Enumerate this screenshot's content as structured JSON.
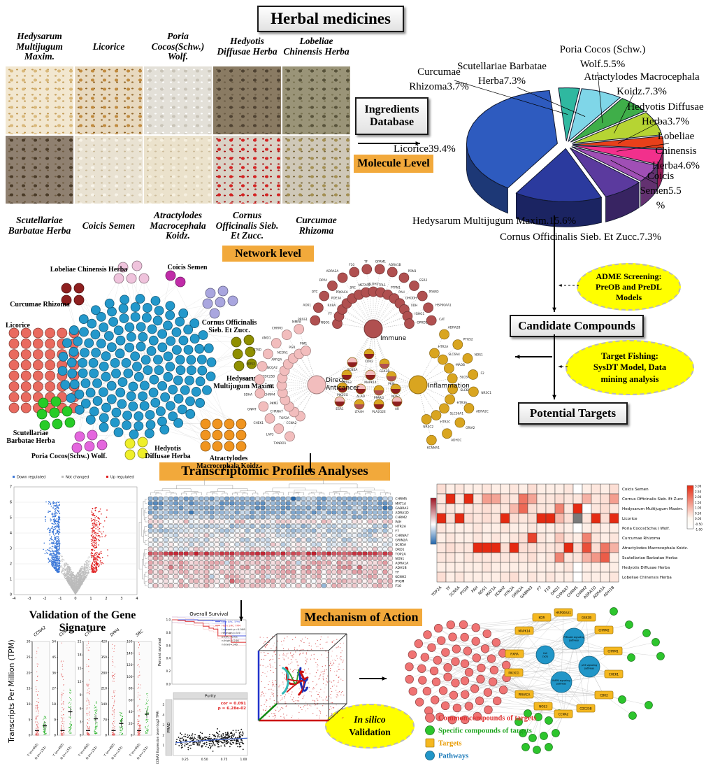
{
  "header": {
    "title": "Herbal medicines"
  },
  "herbs": {
    "row1": [
      {
        "name": "Hedysarum Multijugum Maxim.",
        "base": "#F2E7D0",
        "d1": "#D9B87A",
        "d2": "#C19A55"
      },
      {
        "name": "Licorice",
        "base": "#E8D9BF",
        "d1": "#C08A3E",
        "d2": "#8F6426"
      },
      {
        "name": "Poria Cocos(Schw.) Wolf.",
        "base": "#E3E0D8",
        "d1": "#C9C4B8",
        "d2": "#FFFFFF"
      },
      {
        "name": "Hedyotis Diffusae Herba",
        "base": "#8A7B63",
        "d1": "#4E4232",
        "d2": "#6B5C45"
      },
      {
        "name": "Lobeliae Chinensis Herba",
        "base": "#9A9478",
        "d1": "#57523A",
        "d2": "#76704F"
      }
    ],
    "row2": [
      {
        "name": "Scutellariae Barbatae Herba",
        "base": "#8F8070",
        "d1": "#4A3B28",
        "d2": "#6E5B42"
      },
      {
        "name": "Coicis Semen",
        "base": "#E9E2D2",
        "d1": "#F7F3E8",
        "d2": "#CBBC9C"
      },
      {
        "name": "Atractylodes Macrocephala Koidz.",
        "base": "#EBE2CC",
        "d1": "#F6F0E0",
        "d2": "#CDBD9C"
      },
      {
        "name": "Cornus Officinalis Sieb. Et Zucc.",
        "base": "#D9D2C6",
        "d1": "#D42222",
        "d2": "#A81818"
      },
      {
        "name": "Curcumae Rhizoma",
        "base": "#CFC8B8",
        "d1": "#A38F52",
        "d2": "#7C6B3E"
      }
    ]
  },
  "flow": {
    "ingredients_database": "Ingredients Database",
    "molecule_level": "Molecule Level",
    "network_level": "Network level",
    "transcriptomic_heading": "Transcriptomic Profiles Analyses",
    "validation_heading": "Validation of the Gene Signature",
    "mechanism_heading": "Mechanism of Action",
    "adme_lines": [
      "ADME Screening:",
      "PreOB and PreDL",
      "Models"
    ],
    "candidate_compounds": "Candidate Compounds",
    "target_fishing_lines": [
      "Target Fishing:",
      "SysDT Model, Data",
      "mining analysis"
    ],
    "potential_targets": "Potential Targets",
    "in_silico_lines": [
      "In silico",
      "Validation"
    ]
  },
  "chart_data": [
    {
      "id": "ingredient-pie",
      "type": "pie",
      "slices": [
        {
          "label": "Curcumae Rhizoma",
          "pct": 3.7,
          "color": "#2FB8A0",
          "lines": [
            "Curcumae",
            "Rhizoma3.7%"
          ]
        },
        {
          "label": "Scutellariae Barbatae Herba",
          "pct": 7.3,
          "color": "#7FD6E8",
          "lines": [
            "Scutellariae Barbatae",
            "Herba7.3%"
          ]
        },
        {
          "label": "Poria Cocos (Schw.) Wolf.",
          "pct": 5.5,
          "color": "#3FAE49",
          "lines": [
            "Poria Cocos (Schw.)",
            "Wolf.5.5%"
          ]
        },
        {
          "label": "Atractylodes Macrocephala Koidz.",
          "pct": 7.3,
          "color": "#B6D433",
          "lines": [
            "Atractylodes Macrocephala",
            "Koidz.7.3%"
          ]
        },
        {
          "label": "Hedyotis Diffusae Herba",
          "pct": 3.7,
          "color": "#E8401A",
          "lines": [
            "Hedyotis Diffusae",
            "Herba3.7%"
          ]
        },
        {
          "label": "Lobeliae Chinensis Herba",
          "pct": 4.6,
          "color": "#F2308C",
          "lines": [
            "Lobeliae",
            "Chinensis",
            "Herba4.6%"
          ]
        },
        {
          "label": "Coicis Semen",
          "pct": 5.5,
          "color": "#A04FB5",
          "lines": [
            "Coicis",
            "Semen5.5",
            "%"
          ]
        },
        {
          "label": "Cornus Officinalis Sieb. Et Zucc.",
          "pct": 7.3,
          "color": "#5B3A9E",
          "lines": [
            "Cornus Officinalis Sieb. Et Zucc.7.3%"
          ]
        },
        {
          "label": "Hedysarum Multijugum Maxim.",
          "pct": 15.6,
          "color": "#2B3A9E",
          "lines": [
            "Hedysarum Multijugum Maxim.15.6%"
          ]
        },
        {
          "label": "Licorice",
          "pct": 39.4,
          "color": "#2E5BBF",
          "lines": [
            "Licorice39.4%"
          ]
        }
      ]
    },
    {
      "id": "volcano",
      "type": "scatter",
      "legend": [
        "Down regulated",
        "Not changed",
        "Up regulated"
      ],
      "colors": {
        "down": "#3C78D8",
        "not": "#BBBBBB",
        "up": "#E02020"
      },
      "xlim": [
        -4,
        4
      ],
      "ylim": [
        0,
        7
      ],
      "xticks": [
        -4,
        -3,
        -2,
        -1,
        0,
        1,
        2,
        3,
        4
      ],
      "yticks": [
        0,
        1,
        2,
        3,
        4,
        5,
        6,
        7
      ],
      "counts": {
        "down": 560,
        "not": 2000,
        "up": 300
      }
    },
    {
      "id": "expression-heatmap",
      "type": "heatmap",
      "genes": [
        "CHRM5",
        "MAT1A",
        "GABRA3",
        "ADRA1D",
        "CHRM2",
        "PAH",
        "HTR2A",
        "F7",
        "CHRNA7",
        "GRIN2A",
        "SCN5A",
        "DRD1",
        "TOP2A",
        "NOS1",
        "ADRA1A",
        "ADH1B",
        "TF",
        "KCNH2",
        "PYGM",
        "F10"
      ],
      "row_means": [
        -1.6,
        -1.8,
        -1.7,
        -1.5,
        -1.2,
        0.4,
        -0.9,
        -0.8,
        -0.3,
        -0.5,
        -0.3,
        0.2,
        3.2,
        0.9,
        1.0,
        1.1,
        0.9,
        0.8,
        0.7,
        0.6
      ],
      "n_samples": 48,
      "colorbar_ticks": [
        "4.00",
        "3.00",
        "2.00",
        "1.00",
        "0.00",
        "-1.00",
        "-2.00",
        "-3.00"
      ]
    },
    {
      "id": "herb-gene-heatmap",
      "type": "heatmap",
      "rows": [
        "Coicis Semen",
        "Cornus Officinalis Sieb. Et Zucc",
        "Hedysarum Multijugum Maxim.",
        "Licorice",
        "Poria Cocos(Schw.) Wolf.",
        "Curcumae Rhizoma",
        "Atractylodes Macrocephala Koidz.",
        "Scutellariae Barbatae Herba",
        "Hedyotis Diffusae Herba",
        "Lobeliae Chinensis Herba"
      ],
      "cols": [
        "TOP2A",
        "TF",
        "SCN5A",
        "PYGM",
        "PAH",
        "NOS1",
        "MAT1A",
        "KCNH2",
        "HTR2A",
        "GRIN2A",
        "GABRA3",
        "F7",
        "F10",
        "DRD1",
        "CHRNA7",
        "CHRM5",
        "CHRM2",
        "ADRA1D",
        "ADRA1A",
        "ADH1B"
      ],
      "values": [
        [
          0.3,
          0.1,
          0.2,
          0.1,
          0.1,
          0.2,
          0.1,
          0.1,
          0.2,
          0.1,
          0.3,
          0.1,
          0.1,
          0.1,
          0.2,
          0,
          0.1,
          0.2,
          0.1,
          0.3
        ],
        [
          0.2,
          3,
          0.2,
          3,
          0.2,
          1.2,
          1.1,
          0.3,
          0.2,
          1.8,
          1.1,
          0.2,
          0.2,
          0.3,
          0.2,
          0.2,
          0.9,
          0.2,
          0.3,
          1.2
        ],
        [
          0.2,
          0.2,
          0.1,
          0.2,
          0.2,
          0.3,
          0.2,
          0.2,
          0.8,
          2.0,
          0.3,
          0.2,
          0.2,
          1.6,
          0.2,
          3,
          0,
          0.2,
          0.3,
          0.2
        ],
        [
          3,
          0.3,
          3,
          0.3,
          0.2,
          0.3,
          0.2,
          3,
          0.3,
          0.2,
          0.3,
          3,
          3,
          0.8,
          0.3,
          null,
          0.2,
          3,
          0.3,
          3
        ],
        [
          0.2,
          0.1,
          0.1,
          0.1,
          0.2,
          0.1,
          0.1,
          0.2,
          0.1,
          0.1,
          0.2,
          0.1,
          0.1,
          0.2,
          0.1,
          0,
          0.1,
          0.2,
          0.1,
          0.1
        ],
        [
          0.1,
          0.2,
          0.1,
          0.1,
          0.2,
          0.1,
          0.2,
          0.1,
          0.2,
          0.3,
          2.6,
          0.2,
          0.1,
          0.6,
          0.2,
          0.1,
          1.6,
          0.2,
          0.1,
          0.2
        ],
        [
          0.2,
          0.3,
          0.2,
          0.2,
          3,
          3,
          3,
          0.3,
          3,
          0.3,
          0.3,
          0.2,
          0.2,
          0.3,
          3,
          0.3,
          2.4,
          0.3,
          1.8,
          0.9
        ],
        [
          0.2,
          0.2,
          0.1,
          0.2,
          0.2,
          0.2,
          0.2,
          0.2,
          0.2,
          0.2,
          0.3,
          0.1,
          0.2,
          1.6,
          0.2,
          0.2,
          0.9,
          1.3,
          2.2,
          0.1
        ],
        [
          0.1,
          0.1,
          0.1,
          0.1,
          0.1,
          0.2,
          0.1,
          0.1,
          0.1,
          0.1,
          0.1,
          0.1,
          0.1,
          0.1,
          0.2,
          0,
          0.1,
          0.1,
          0.1,
          0.1
        ],
        [
          0.3,
          0.1,
          0.2,
          0.1,
          0.1,
          0.1,
          0.1,
          0.2,
          0.3,
          0.1,
          0.2,
          0.1,
          0.2,
          0.1,
          0.1,
          0,
          0.1,
          0.1,
          0.1,
          0.2
        ]
      ],
      "na_color": "#7A7A7A",
      "colorbar_ticks": [
        "3.00",
        "2.50",
        "2.00",
        "1.50",
        "1.00",
        "0.50",
        "0.00",
        "-0.50",
        "-1.00"
      ]
    },
    {
      "id": "tpm-strips",
      "type": "strip",
      "ylabel": "Transcripts Per Million (TPM)",
      "groups": [
        "T (n=492)",
        "N (n=152)"
      ],
      "panels": [
        {
          "gene": "CCNA2",
          "ymax": 30,
          "step": 5,
          "green": 0.2
        },
        {
          "gene": "CDK2",
          "ymax": 54,
          "step": 9,
          "green": 0.5
        },
        {
          "gene": "CTH",
          "ymax": 21,
          "step": 3,
          "green": 0.35
        },
        {
          "gene": "DPP4",
          "ymax": 420,
          "step": 70,
          "green": 0.25
        },
        {
          "gene": "SRC",
          "ymax": 160,
          "step": 20,
          "green": 0.45
        }
      ]
    },
    {
      "id": "overall-survival",
      "type": "line",
      "title": "Overall Survival",
      "ylabel": "Percent survival",
      "yticks": [
        "0.0",
        "0.2",
        "0.4",
        "0.6",
        "0.8",
        "1.0"
      ],
      "legend": [
        "Low SRC TPM",
        "High SRC TPM",
        "Logrank p=0.008",
        "HR(high)=3.9",
        "p(HR)=0.01",
        "n(high)=246",
        "n(low)=246"
      ],
      "series": [
        {
          "name": "Low SRC TPM",
          "color": "#4455E0",
          "steps": [
            [
              0,
              1
            ],
            [
              0.35,
              0.99
            ],
            [
              0.55,
              0.985
            ],
            [
              0.66,
              0.98
            ],
            [
              0.72,
              0.75
            ],
            [
              1,
              0.75
            ]
          ]
        },
        {
          "name": "High SRC TPM",
          "color": "#E04444",
          "steps": [
            [
              0,
              1
            ],
            [
              0.08,
              0.99
            ],
            [
              0.18,
              0.975
            ],
            [
              0.3,
              0.95
            ],
            [
              0.42,
              0.9
            ],
            [
              0.5,
              0.87
            ],
            [
              0.56,
              0.855
            ],
            [
              0.62,
              0.75
            ],
            [
              0.8,
              0.65
            ],
            [
              1,
              0.65
            ]
          ]
        }
      ]
    },
    {
      "id": "purity-scatter",
      "type": "scatter",
      "strip_label": "Purity",
      "row_label": "PRAD",
      "cor_text": "cor = 0.091",
      "p_text": "p = 6.28e-02",
      "ylabel": "CCNA2 Expression Level (log2 TPM)",
      "xticks": [
        "0.25",
        "0.50",
        "0.75",
        "1.00"
      ],
      "yticks": [
        1,
        2,
        3,
        4,
        5
      ],
      "n_points": 330,
      "trend_color": "#4466CC"
    }
  ],
  "left_network": {
    "hub_color": "#2398CB",
    "clusters": [
      {
        "name": "Lobeliae Chinensis Herba",
        "color": "#EFC3DC",
        "count": 5
      },
      {
        "name": "Coicis Semen",
        "color": "#C02BA8",
        "count": 2
      },
      {
        "name": "Curcumae Rhizoma",
        "color": "#8E1F1F",
        "count": 4
      },
      {
        "name": "Cornus Officinalis Sieb. Et Zucc.",
        "color": "#A9A6DF",
        "count": 6
      },
      {
        "name": "Licorice",
        "color": "#E96A5F",
        "count": 48
      },
      {
        "name": "Hedysarum Multijugum Maxim.",
        "color": "#8F8F00",
        "count": 6
      },
      {
        "name": "Scutellariae Barbatae Herba",
        "color": "#27CC27",
        "count": 8
      },
      {
        "name": "Poria Cocos(Schw.) Wolf.",
        "color": "#E466DE",
        "count": 5
      },
      {
        "name": "Hedyotis Diffusae Herba",
        "color": "#EFEF2A",
        "count": 4
      },
      {
        "name": "Atractylodes Macrocephala Koidz.",
        "color": "#F0941F",
        "count": 12
      }
    ]
  },
  "hub_network": {
    "hubs": [
      {
        "name": "Immune",
        "color": "#B05050",
        "members": [
          "NQO1",
          "F7",
          "RXRA",
          "PDE3A",
          "PRKACA",
          "SRC",
          "METAP2",
          "ALDH2",
          "TPL1",
          "PTPN1",
          "PAH",
          "DHODH",
          "XDH",
          "IGHG1",
          "OPRD1",
          "PRSS1",
          "AOX1",
          "OTC",
          "DPP4",
          "ADRA2A",
          "F10",
          "TF",
          "OPRM1",
          "ADRA1B",
          "PON1",
          "ESR2",
          "PPARD",
          "HSP90AA1",
          "CAT"
        ]
      },
      {
        "name": "Direct Anticancer",
        "color": "#F2BDBD",
        "members": [
          "CCNA2",
          "TOP2A",
          "CHRNA7",
          "PKM2",
          "CHRM4",
          "KDR",
          "CDC25B",
          "NCOA2",
          "AMY2A",
          "NCOA1",
          "PGR",
          "PIM1",
          "TXNRD1",
          "LAP3",
          "CHEK1",
          "GNMT",
          "SDHA",
          "AKR1B1",
          "NOS3",
          "CTSD",
          "AMD1",
          "CHRM3",
          "MMP8"
        ]
      },
      {
        "name": "Inflammation",
        "color": "#D9A520",
        "members": [
          "HTR2A",
          "SLC6A4",
          "MAOB",
          "SLC6A2",
          "SLC6A3",
          "HTR3A",
          "SLC36A1",
          "HTR2C",
          "NR3C2",
          "ADRA2B",
          "PTGS2",
          "NOS1",
          "F2",
          "NR3C1",
          "ADRA2C",
          "GRIA2",
          "ADH1C",
          "KCNMA1"
        ]
      }
    ],
    "shared": [
      "CDK2",
      "SCN5A",
      "GSK3B",
      "PRSS3",
      "MAPK14",
      "PKIA",
      "PIK3CG",
      "ALAD",
      "PPARG",
      "NOS2",
      "ESR1",
      "LTA4H",
      "PLA2G2E",
      "AR"
    ]
  },
  "bottom_network": {
    "targets": [
      "KDR",
      "HSP90AA1",
      "GSK3B",
      "MAPK14",
      "CHRM2",
      "RXRA",
      "CHRM1",
      "PIK3CG",
      "CHEK1",
      "PRKACA",
      "CDK2",
      "NOS3",
      "CCNA2",
      "CDC25B"
    ],
    "pathways": [
      "PI3K-Akt signaling pathway",
      "Cell cycle",
      "p53 signaling pathway",
      "MAPK signaling pathway"
    ],
    "ring_counts": [
      7,
      13,
      19,
      24
    ],
    "colors": {
      "common": "#F07373",
      "specific": "#2DC52D",
      "target": "#F5B820",
      "pathway": "#2196C8"
    },
    "legend": [
      {
        "label": "Common compounds of targets",
        "color": "#F07373",
        "text": "#E03030",
        "shape": "circle"
      },
      {
        "label": "Specific compounds of targets",
        "color": "#2DC52D",
        "text": "#1FA51F",
        "shape": "circle"
      },
      {
        "label": "Targets",
        "color": "#F5B820",
        "text": "#E89A00",
        "shape": "square"
      },
      {
        "label": "Pathways",
        "color": "#2196C8",
        "text": "#1878B8",
        "shape": "circle"
      }
    ]
  }
}
